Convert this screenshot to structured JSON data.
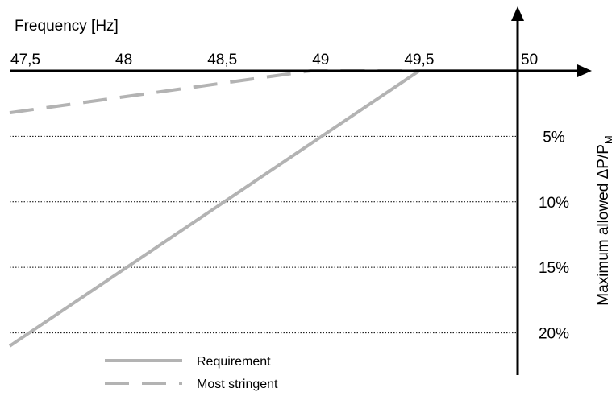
{
  "chart_data": {
    "type": "line",
    "xlabel": "Frequency [Hz]",
    "ylabel": "Maximum allowed ΔP/P",
    "ylabel_subscript": "M",
    "xlim": [
      47.42,
      50
    ],
    "ylim": [
      0,
      21.5
    ],
    "x_ticks": [
      {
        "value": 47.5,
        "label": "47,5"
      },
      {
        "value": 48,
        "label": "48"
      },
      {
        "value": 48.5,
        "label": "48,5"
      },
      {
        "value": 49,
        "label": "49"
      },
      {
        "value": 49.5,
        "label": "49,5"
      },
      {
        "value": 50,
        "label": "50"
      }
    ],
    "y_ticks": [
      {
        "value": 5,
        "label": "5%"
      },
      {
        "value": 10,
        "label": "10%"
      },
      {
        "value": 15,
        "label": "15%"
      },
      {
        "value": 20,
        "label": "20%"
      }
    ],
    "grid": "horizontal dotted",
    "y_direction": "downward",
    "legend": {
      "placement": "bottom-center"
    },
    "series": [
      {
        "name": "Requirement",
        "style": "solid",
        "color": "#b3b3b3",
        "points": [
          [
            47.42,
            21.0
          ],
          [
            49.5,
            0
          ],
          [
            50,
            0
          ]
        ]
      },
      {
        "name": "Most stringent",
        "style": "dashed",
        "color": "#b3b3b3",
        "points": [
          [
            47.42,
            3.2
          ],
          [
            48.95,
            0
          ],
          [
            50,
            0
          ]
        ]
      }
    ]
  }
}
